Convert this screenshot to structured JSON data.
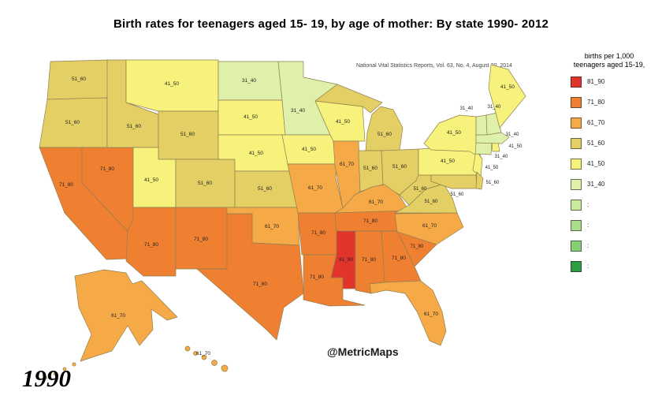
{
  "title": "Birth rates for teenagers aged 15- 19, by age of mother: By state 1990- 2012",
  "source_note": "National Vital Statistics Reports, Vol. 63, No. 4, August 20, 2014",
  "watermark": "@MetricMaps",
  "year_label": "1990",
  "legend": {
    "title_line1": "births per 1,000",
    "title_line2": "teenagers aged 15-19,",
    "items": [
      {
        "label": "81_90",
        "color": "#e2342b"
      },
      {
        "label": "71_80",
        "color": "#ef8032"
      },
      {
        "label": "61_70",
        "color": "#f5a947"
      },
      {
        "label": "51_60",
        "color": "#e3cf63"
      },
      {
        "label": "41_50",
        "color": "#f6f27b"
      },
      {
        "label": "31_40",
        "color": "#def0a9"
      },
      {
        "label": ":",
        "color": "#c9e99d"
      },
      {
        "label": ":",
        "color": "#a9dd8c"
      },
      {
        "label": ":",
        "color": "#87d077"
      },
      {
        "label": ":",
        "color": "#2f9e41"
      }
    ]
  },
  "map_data": {
    "type": "choropleth",
    "unit": "births per 1,000 teenagers aged 15-19",
    "year": "1990",
    "buckets": {
      "81_90": "#e2342b",
      "71_80": "#ef8032",
      "61_70": "#f5a947",
      "51_60": "#e3cf63",
      "41_50": "#f6f27b",
      "31_40": "#def0a9"
    },
    "states": [
      {
        "abbr": "WA",
        "bucket": "51_60"
      },
      {
        "abbr": "OR",
        "bucket": "51_60"
      },
      {
        "abbr": "CA",
        "bucket": "71_80"
      },
      {
        "abbr": "NV",
        "bucket": "71_80"
      },
      {
        "abbr": "ID",
        "bucket": "51_60"
      },
      {
        "abbr": "MT",
        "bucket": "41_50"
      },
      {
        "abbr": "WY",
        "bucket": "51_60"
      },
      {
        "abbr": "UT",
        "bucket": "41_50"
      },
      {
        "abbr": "CO",
        "bucket": "51_60"
      },
      {
        "abbr": "AZ",
        "bucket": "71_80"
      },
      {
        "abbr": "NM",
        "bucket": "71_80"
      },
      {
        "abbr": "ND",
        "bucket": "31_40"
      },
      {
        "abbr": "SD",
        "bucket": "41_50"
      },
      {
        "abbr": "NE",
        "bucket": "41_50"
      },
      {
        "abbr": "KS",
        "bucket": "51_60"
      },
      {
        "abbr": "OK",
        "bucket": "61_70"
      },
      {
        "abbr": "TX",
        "bucket": "71_80"
      },
      {
        "abbr": "MN",
        "bucket": "31_40"
      },
      {
        "abbr": "IA",
        "bucket": "41_50"
      },
      {
        "abbr": "MO",
        "bucket": "61_70"
      },
      {
        "abbr": "AR",
        "bucket": "71_80"
      },
      {
        "abbr": "LA",
        "bucket": "71_80"
      },
      {
        "abbr": "WI",
        "bucket": "41_50"
      },
      {
        "abbr": "IL",
        "bucket": "61_70"
      },
      {
        "abbr": "MI",
        "bucket": "51_60"
      },
      {
        "abbr": "IN",
        "bucket": "51_60"
      },
      {
        "abbr": "OH",
        "bucket": "51_60"
      },
      {
        "abbr": "KY",
        "bucket": "61_70"
      },
      {
        "abbr": "TN",
        "bucket": "71_80"
      },
      {
        "abbr": "MS",
        "bucket": "81_90"
      },
      {
        "abbr": "AL",
        "bucket": "71_80"
      },
      {
        "abbr": "GA",
        "bucket": "71_80"
      },
      {
        "abbr": "FL",
        "bucket": "61_70"
      },
      {
        "abbr": "SC",
        "bucket": "71_80"
      },
      {
        "abbr": "NC",
        "bucket": "61_70"
      },
      {
        "abbr": "VA",
        "bucket": "51_60"
      },
      {
        "abbr": "WV",
        "bucket": "51_60"
      },
      {
        "abbr": "PA",
        "bucket": "41_50"
      },
      {
        "abbr": "NY",
        "bucket": "41_50"
      },
      {
        "abbr": "NJ",
        "bucket": "41_50"
      },
      {
        "abbr": "MD",
        "bucket": "51_60"
      },
      {
        "abbr": "DE",
        "bucket": "51_60"
      },
      {
        "abbr": "CT",
        "bucket": "31_40"
      },
      {
        "abbr": "RI",
        "bucket": "41_50"
      },
      {
        "abbr": "MA",
        "bucket": "31_40"
      },
      {
        "abbr": "VT",
        "bucket": "31_40"
      },
      {
        "abbr": "NH",
        "bucket": "31_40"
      },
      {
        "abbr": "ME",
        "bucket": "41_50"
      },
      {
        "abbr": "AK",
        "bucket": "61_70"
      },
      {
        "abbr": "HI",
        "bucket": "61_70"
      }
    ]
  }
}
